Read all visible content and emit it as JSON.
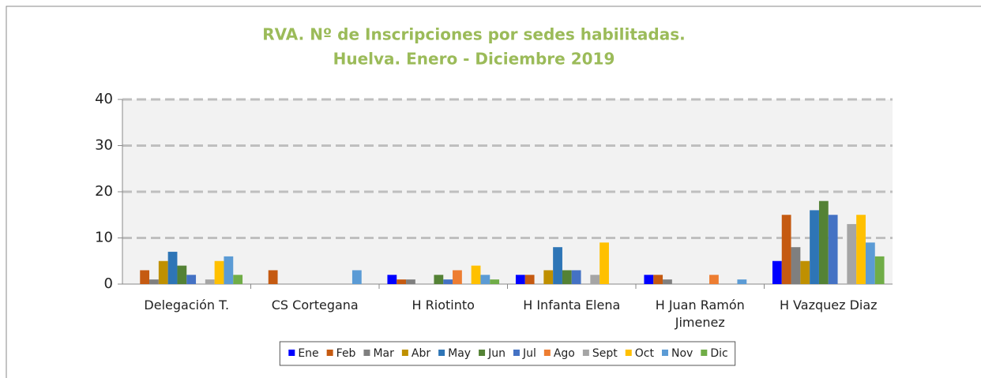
{
  "chart_data": {
    "type": "bar",
    "title": "RVA. Nº de Inscripciones por sedes habilitadas.",
    "subtitle": "Huelva. Enero - Diciembre 2019",
    "categories": [
      "Delegación T.",
      "CS Cortegana",
      "H Riotinto",
      "H Infanta Elena",
      "H Juan Ramón Jimenez",
      "H Vazquez Diaz"
    ],
    "series": [
      {
        "name": "Ene",
        "color": "#0000ff",
        "values": [
          0,
          0,
          2,
          2,
          2,
          5
        ]
      },
      {
        "name": "Feb",
        "color": "#c55a11",
        "values": [
          3,
          3,
          1,
          2,
          2,
          15
        ]
      },
      {
        "name": "Mar",
        "color": "#7f7f7f",
        "values": [
          1,
          0,
          1,
          0,
          1,
          8
        ]
      },
      {
        "name": "Abr",
        "color": "#bf9000",
        "values": [
          5,
          0,
          0,
          3,
          0,
          5
        ]
      },
      {
        "name": "May",
        "color": "#2e75b6",
        "values": [
          7,
          0,
          0,
          8,
          0,
          16
        ]
      },
      {
        "name": "Jun",
        "color": "#548235",
        "values": [
          4,
          0,
          2,
          3,
          0,
          18
        ]
      },
      {
        "name": "Jul",
        "color": "#4472c4",
        "values": [
          2,
          0,
          1,
          3,
          0,
          15
        ]
      },
      {
        "name": "Ago",
        "color": "#ed7d31",
        "values": [
          0,
          0,
          3,
          0,
          2,
          0
        ]
      },
      {
        "name": "Sept",
        "color": "#a5a5a5",
        "values": [
          1,
          0,
          0,
          2,
          0,
          13
        ]
      },
      {
        "name": "Oct",
        "color": "#ffc000",
        "values": [
          5,
          0,
          4,
          9,
          0,
          15
        ]
      },
      {
        "name": "Nov",
        "color": "#5b9bd5",
        "values": [
          6,
          3,
          2,
          0,
          1,
          9
        ]
      },
      {
        "name": "Dic",
        "color": "#70ad47",
        "values": [
          2,
          0,
          1,
          0,
          0,
          6
        ]
      }
    ],
    "ylim": [
      0,
      40
    ],
    "yticks": [
      0,
      10,
      20,
      30,
      40
    ],
    "grid": true,
    "legend": "bottom"
  }
}
